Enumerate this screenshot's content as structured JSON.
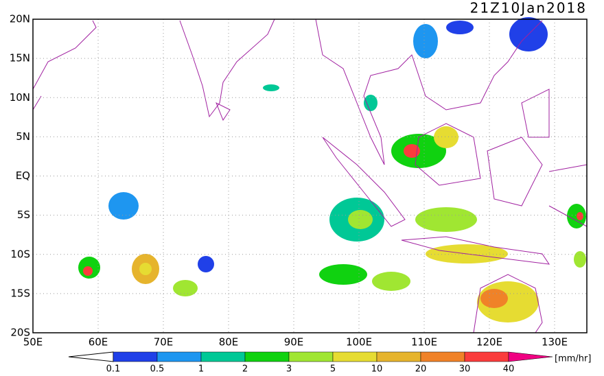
{
  "title": "21Z10Jan2018",
  "lat_labels": [
    "20N",
    "15N",
    "10N",
    "5N",
    "EQ",
    "5S",
    "10S",
    "15S",
    "20S"
  ],
  "lon_labels": [
    "50E",
    "60E",
    "70E",
    "80E",
    "90E",
    "100E",
    "110E",
    "120E",
    "130E"
  ],
  "colorbar": {
    "ticks": [
      0.1,
      0.5,
      1,
      2,
      3,
      5,
      10,
      20,
      30,
      40
    ],
    "colors": [
      "#2040e8",
      "#1e96f0",
      "#00c896",
      "#10d210",
      "#a0e632",
      "#e6dc32",
      "#e6b42d",
      "#f08228",
      "#fa3c3c",
      "#f00082"
    ],
    "unit": "[mm/hr]"
  }
}
